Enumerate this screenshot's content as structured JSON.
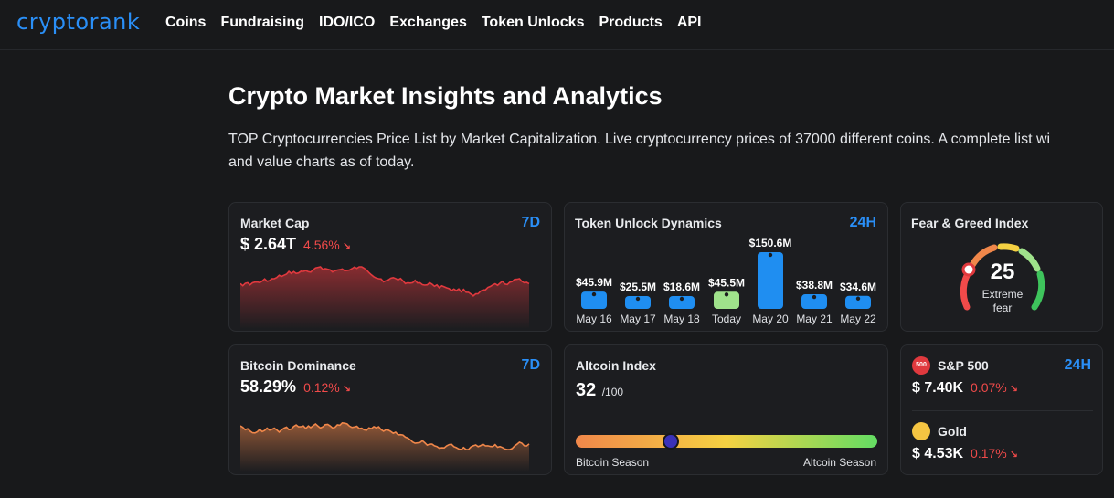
{
  "nav": {
    "logo": "cryptorank",
    "items": [
      "Coins",
      "Fundraising",
      "IDO/ICO",
      "Exchanges",
      "Token Unlocks",
      "Products",
      "API"
    ]
  },
  "page": {
    "title": "Crypto Market Insights and Analytics",
    "description_line1": "TOP Cryptocurrencies Price List by Market Capitalization. Live cryptocurrency prices of 37000 different coins. A complete list wi",
    "description_line2": "and value charts as of today."
  },
  "market_cap": {
    "title": "Market Cap",
    "period": "7D",
    "value": "$ 2.64T",
    "change": "4.56%",
    "arrow": "↘",
    "color": "#e0393e"
  },
  "token_unlock": {
    "title": "Token Unlock Dynamics",
    "period": "24H",
    "chart_data": {
      "type": "bar",
      "categories": [
        "May 16",
        "May 17",
        "May 18",
        "Today",
        "May 20",
        "May 21",
        "May 22"
      ],
      "labels": [
        "$45.9M",
        "$25.5M",
        "$18.6M",
        "$45.5M",
        "$150.6M",
        "$38.8M",
        "$34.6M"
      ],
      "values": [
        45.9,
        25.5,
        18.6,
        45.5,
        150.6,
        38.8,
        34.6
      ],
      "highlight_index": 3,
      "colors": {
        "bar": "#1f8ef1",
        "highlight": "#9fe28b"
      }
    }
  },
  "fear_greed": {
    "title": "Fear & Greed Index",
    "value": "25",
    "label_line1": "Extreme",
    "label_line2": "fear",
    "level": 0.25
  },
  "btc_dominance": {
    "title": "Bitcoin Dominance",
    "period": "7D",
    "value": "58.29%",
    "change": "0.12%",
    "arrow": "↘",
    "color": "#f0874a"
  },
  "altcoin_index": {
    "title": "Altcoin Index",
    "value": "32",
    "suffix": "/100",
    "level": 0.32,
    "left_label": "Bitcoin Season",
    "right_label": "Altcoin Season"
  },
  "markets": {
    "period": "24H",
    "sp500": {
      "icon_text": "500",
      "name": "S&P 500",
      "value": "$ 7.40K",
      "change": "0.07%",
      "arrow": "↘"
    },
    "gold": {
      "name": "Gold",
      "value": "$ 4.53K",
      "change": "0.17%",
      "arrow": "↘"
    }
  }
}
